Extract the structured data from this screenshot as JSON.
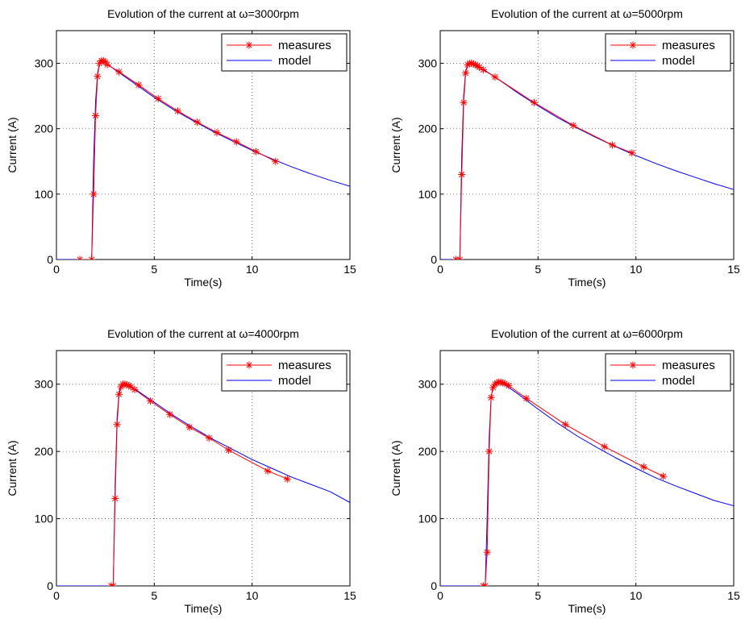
{
  "chart_data": [
    {
      "type": "line",
      "title": "Evolution of the current at ω=3000rpm",
      "xlabel": "Time(s)",
      "ylabel": "Current (A)",
      "xlim": [
        0,
        15
      ],
      "ylim": [
        0,
        350
      ],
      "xticks": [
        "0",
        "5",
        "10",
        "15"
      ],
      "yticks": [
        "0",
        "100",
        "200",
        "300"
      ],
      "grid": true,
      "legend_position": "top-right",
      "series": [
        {
          "name": "measures",
          "color": "#ff0000",
          "marker": "asterisk",
          "x": [
            1.2,
            1.8,
            1.9,
            2.0,
            2.1,
            2.2,
            2.3,
            2.4,
            2.5,
            2.6,
            3.2,
            4.2,
            5.2,
            6.2,
            7.2,
            8.2,
            9.2,
            10.2,
            11.2
          ],
          "y": [
            0,
            0,
            100,
            220,
            280,
            300,
            304,
            304,
            302,
            298,
            287,
            267,
            246,
            227,
            210,
            194,
            180,
            165,
            150
          ]
        },
        {
          "name": "model",
          "color": "#0000ff",
          "x": [
            0,
            1.8,
            1.9,
            2.0,
            2.1,
            2.2,
            2.4,
            2.6,
            3.0,
            4.0,
            5.0,
            6.0,
            7.0,
            8.0,
            9.0,
            10.0,
            11.0,
            12.0,
            13.0,
            14.0,
            15.0
          ],
          "y": [
            0,
            0,
            150,
            240,
            285,
            300,
            302,
            299,
            290,
            269,
            248,
            229,
            212,
            196,
            181,
            167,
            154,
            142,
            131,
            121,
            112
          ]
        }
      ]
    },
    {
      "type": "line",
      "title": "Evolution of the current at ω=5000rpm",
      "xlabel": "Time(s)",
      "ylabel": "Current (A)",
      "xlim": [
        0,
        15
      ],
      "ylim": [
        0,
        350
      ],
      "xticks": [
        "0",
        "5",
        "10",
        "15"
      ],
      "yticks": [
        "0",
        "100",
        "200",
        "300"
      ],
      "grid": true,
      "legend_position": "top-right",
      "series": [
        {
          "name": "measures",
          "color": "#ff0000",
          "marker": "asterisk",
          "x": [
            0.8,
            1.0,
            1.1,
            1.2,
            1.3,
            1.4,
            1.5,
            1.6,
            1.7,
            1.8,
            1.9,
            2.0,
            2.2,
            2.8,
            4.8,
            6.8,
            8.8,
            9.8
          ],
          "y": [
            0,
            0,
            130,
            240,
            285,
            298,
            300,
            300,
            299,
            298,
            296,
            294,
            290,
            279,
            240,
            205,
            175,
            163
          ]
        },
        {
          "name": "model",
          "color": "#0000ff",
          "x": [
            0,
            1.0,
            1.1,
            1.2,
            1.3,
            1.4,
            1.6,
            1.8,
            2.2,
            3.0,
            4.0,
            5.0,
            6.0,
            7.0,
            8.0,
            9.0,
            10.0,
            11.0,
            12.0,
            13.0,
            14.0,
            15.0
          ],
          "y": [
            0,
            0,
            160,
            250,
            288,
            298,
            300,
            298,
            291,
            275,
            254,
            235,
            217,
            201,
            186,
            172,
            159,
            147,
            136,
            126,
            116,
            107
          ]
        }
      ]
    },
    {
      "type": "line",
      "title": "Evolution of the current at ω=4000rpm",
      "xlabel": "Time(s)",
      "ylabel": "Current (A)",
      "xlim": [
        0,
        15
      ],
      "ylim": [
        0,
        350
      ],
      "xticks": [
        "0",
        "5",
        "10",
        "15"
      ],
      "yticks": [
        "0",
        "100",
        "200",
        "300"
      ],
      "grid": true,
      "legend_position": "top-right",
      "series": [
        {
          "name": "measures",
          "color": "#ff0000",
          "marker": "asterisk",
          "x": [
            2.8,
            2.9,
            3.0,
            3.1,
            3.2,
            3.3,
            3.4,
            3.5,
            3.6,
            3.7,
            3.8,
            4.0,
            4.8,
            5.8,
            6.8,
            7.8,
            8.8,
            10.8,
            11.8
          ],
          "y": [
            0,
            0,
            130,
            240,
            285,
            296,
            300,
            300,
            299,
            298,
            296,
            292,
            275,
            255,
            236,
            220,
            202,
            171,
            159
          ]
        },
        {
          "name": "model",
          "color": "#0000ff",
          "x": [
            0,
            2.9,
            3.0,
            3.1,
            3.2,
            3.3,
            3.5,
            3.7,
            4.0,
            5.0,
            6.0,
            7.0,
            8.0,
            9.0,
            10.0,
            11.0,
            12.0,
            13.0,
            14.0,
            15.0
          ],
          "y": [
            0,
            0,
            150,
            250,
            288,
            298,
            300,
            298,
            293,
            273,
            253,
            235,
            218,
            203,
            188,
            175,
            162,
            151,
            140,
            124
          ]
        }
      ]
    },
    {
      "type": "line",
      "title": "Evolution of the current at ω=6000rpm",
      "xlabel": "Time(s)",
      "ylabel": "Current (A)",
      "xlim": [
        0,
        15
      ],
      "ylim": [
        0,
        350
      ],
      "xticks": [
        "0",
        "5",
        "10",
        "15"
      ],
      "yticks": [
        "0",
        "100",
        "200",
        "300"
      ],
      "grid": true,
      "legend_position": "top-right",
      "series": [
        {
          "name": "measures",
          "color": "#ff0000",
          "marker": "asterisk",
          "x": [
            2.2,
            2.3,
            2.4,
            2.5,
            2.6,
            2.7,
            2.8,
            2.9,
            3.0,
            3.1,
            3.2,
            3.3,
            3.5,
            4.4,
            6.4,
            8.4,
            10.4,
            11.4
          ],
          "y": [
            0,
            0,
            50,
            200,
            280,
            295,
            300,
            302,
            303,
            303,
            302,
            301,
            298,
            279,
            240,
            207,
            177,
            163
          ]
        },
        {
          "name": "model",
          "color": "#0000ff",
          "x": [
            0,
            2.3,
            2.4,
            2.5,
            2.6,
            2.7,
            2.8,
            3.0,
            3.3,
            4.0,
            5.0,
            6.0,
            7.0,
            8.0,
            9.0,
            10.0,
            11.0,
            12.0,
            13.0,
            14.0,
            15.0
          ],
          "y": [
            0,
            0,
            100,
            220,
            280,
            296,
            300,
            302,
            299,
            285,
            263,
            242,
            223,
            206,
            190,
            175,
            161,
            149,
            138,
            127,
            119
          ]
        }
      ]
    }
  ]
}
